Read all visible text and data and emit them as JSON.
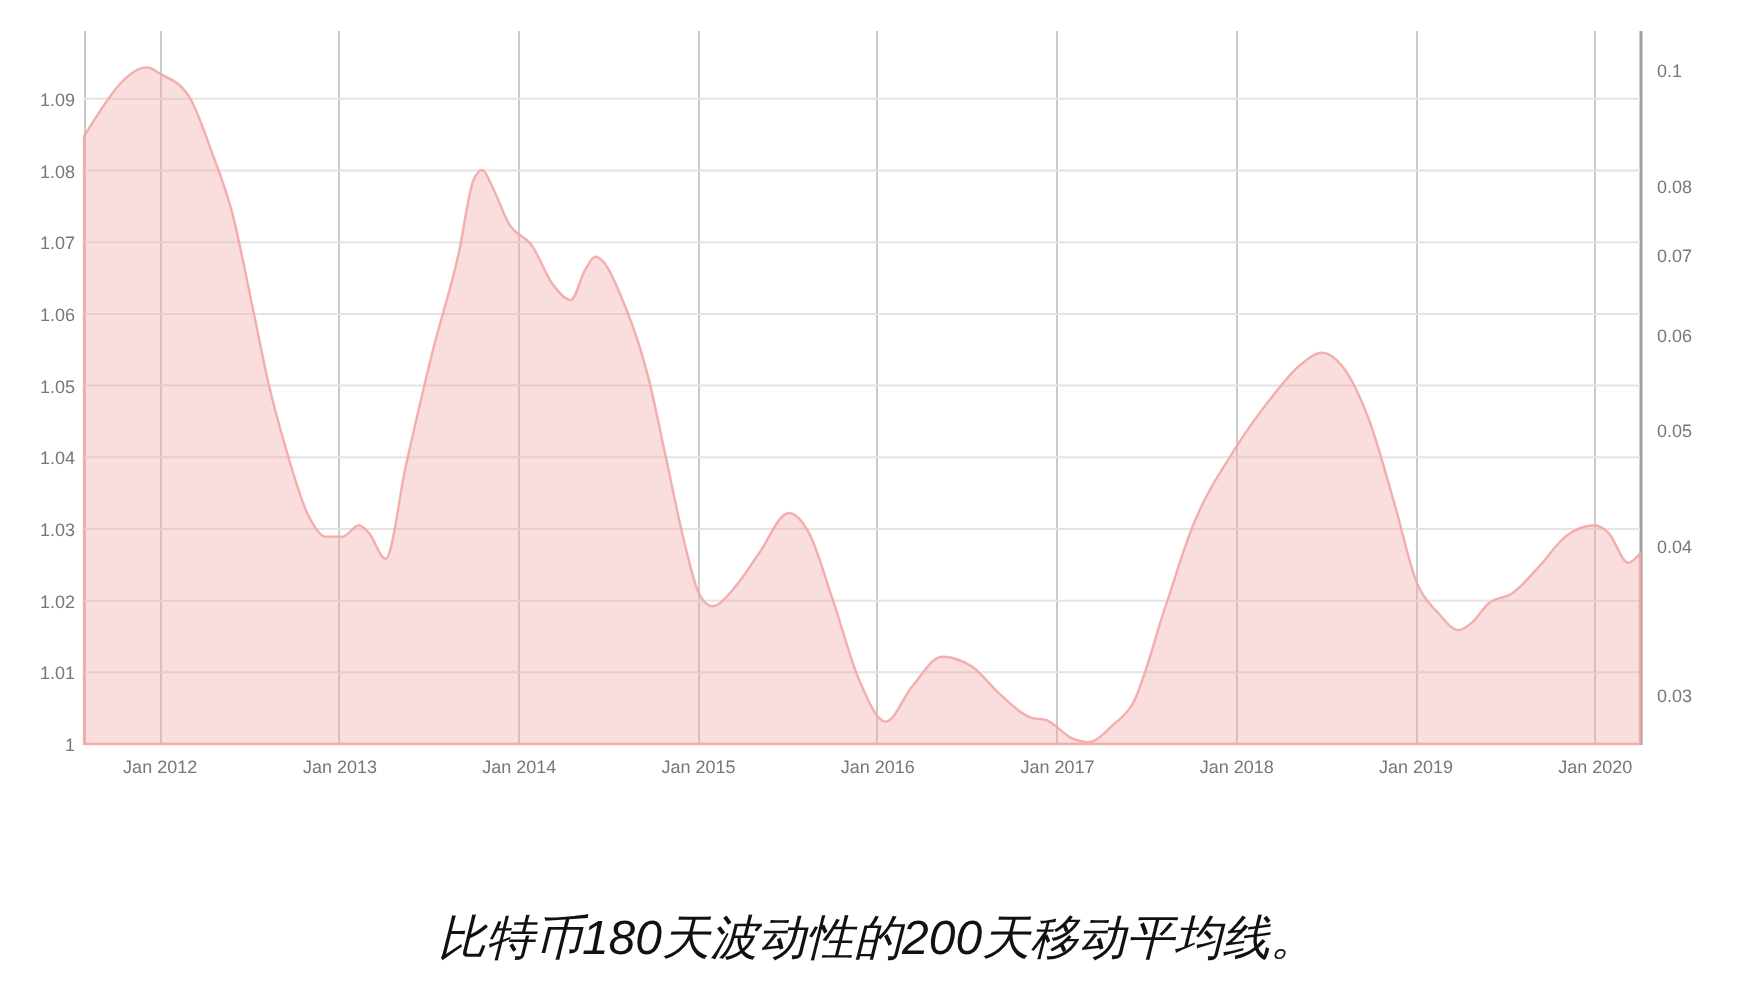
{
  "chart_data": {
    "type": "area",
    "annotations": [
      "比特币180天波动性的200天移动平均线。"
    ],
    "x": [
      "2011-08-01",
      "2011-12-08",
      "2012-01-01",
      "2012-03-02",
      "2012-04-18",
      "2012-05-29",
      "2012-07-09",
      "2012-08-12",
      "2012-09-14",
      "2012-11-01",
      "2012-12-05",
      "2013-01-08",
      "2013-02-11",
      "2013-03-03",
      "2013-04-06",
      "2013-05-17",
      "2013-07-10",
      "2013-09-02",
      "2013-10-02",
      "2013-10-20",
      "2013-11-09",
      "2013-12-13",
      "2014-01-30",
      "2014-03-11",
      "2014-04-18",
      "2014-05-17",
      "2014-06-07",
      "2014-08-07",
      "2014-09-24",
      "2014-10-27",
      "2014-12-07",
      "2015-01-04",
      "2015-01-31",
      "2015-03-20",
      "2015-05-06",
      "2015-07-06",
      "2015-08-16",
      "2015-10-03",
      "2015-11-26",
      "2016-01-19",
      "2016-03-13",
      "2016-05-13",
      "2016-07-13",
      "2016-09-06",
      "2016-11-13",
      "2016-12-10",
      "2017-02-02",
      "2017-03-08",
      "2017-04-25",
      "2017-06-05",
      "2017-08-11",
      "2017-10-05",
      "2017-12-29",
      "2018-03-16",
      "2018-05-09",
      "2018-06-26",
      "2018-08-06",
      "2018-09-29",
      "2018-11-22",
      "2019-01-02",
      "2019-02-18",
      "2019-03-31",
      "2019-04-27",
      "2019-05-31",
      "2019-07-18",
      "2019-09-10",
      "2019-11-03",
      "2020-01-01",
      "2020-01-30",
      "2020-03-10",
      "2020-04-03"
    ],
    "series": [
      {
        "color": "#f3a6a6",
        "axis": "y2",
        "values": [
          0.088,
          0.1005,
          0.0994,
          0.095,
          0.0852,
          0.0759,
          0.0634,
          0.0544,
          0.0484,
          0.0423,
          0.0407,
          0.0407,
          0.0416,
          0.041,
          0.039,
          0.0466,
          0.058,
          0.0703,
          0.0809,
          0.0825,
          0.0799,
          0.0744,
          0.0712,
          0.0663,
          0.0642,
          0.068,
          0.0698,
          0.0634,
          0.0551,
          0.0478,
          0.04,
          0.0365,
          0.0356,
          0.037,
          0.0394,
          0.0426,
          0.041,
          0.0361,
          0.0309,
          0.0285,
          0.0305,
          0.0323,
          0.0317,
          0.0301,
          0.0287,
          0.0286,
          0.0276,
          0.0274,
          0.0283,
          0.0295,
          0.0356,
          0.0415,
          0.0481,
          0.0533,
          0.0565,
          0.058,
          0.0565,
          0.051,
          0.0431,
          0.0375,
          0.0351,
          0.034,
          0.0345,
          0.0358,
          0.0365,
          0.0384,
          0.0407,
          0.0416,
          0.041,
          0.0387,
          0.0394
        ]
      }
    ],
    "xlim": [
      "2011-08-01",
      "2020-04-03"
    ],
    "xticks": [
      {
        "value": "2012-01",
        "label": "Jan 2012"
      },
      {
        "value": "2013-01",
        "label": "Jan 2013"
      },
      {
        "value": "2014-01",
        "label": "Jan 2014"
      },
      {
        "value": "2015-01",
        "label": "Jan 2015"
      },
      {
        "value": "2016-01",
        "label": "Jan 2016"
      },
      {
        "value": "2017-01",
        "label": "Jan 2017"
      },
      {
        "value": "2018-01",
        "label": "Jan 2018"
      },
      {
        "value": "2019-01",
        "label": "Jan 2019"
      },
      {
        "value": "2020-01",
        "label": "Jan 2020"
      }
    ],
    "ylim": [
      1,
      1.0996
    ],
    "yticks": [
      1,
      1.01,
      1.02,
      1.03,
      1.04,
      1.05,
      1.06,
      1.07,
      1.08,
      1.09
    ],
    "y2lim": [
      0.0273,
      0.108
    ],
    "y2ticks": [
      0.03,
      0.04,
      0.05,
      0.06,
      0.07,
      0.08,
      0.1
    ],
    "log": "y2",
    "grid": true
  }
}
